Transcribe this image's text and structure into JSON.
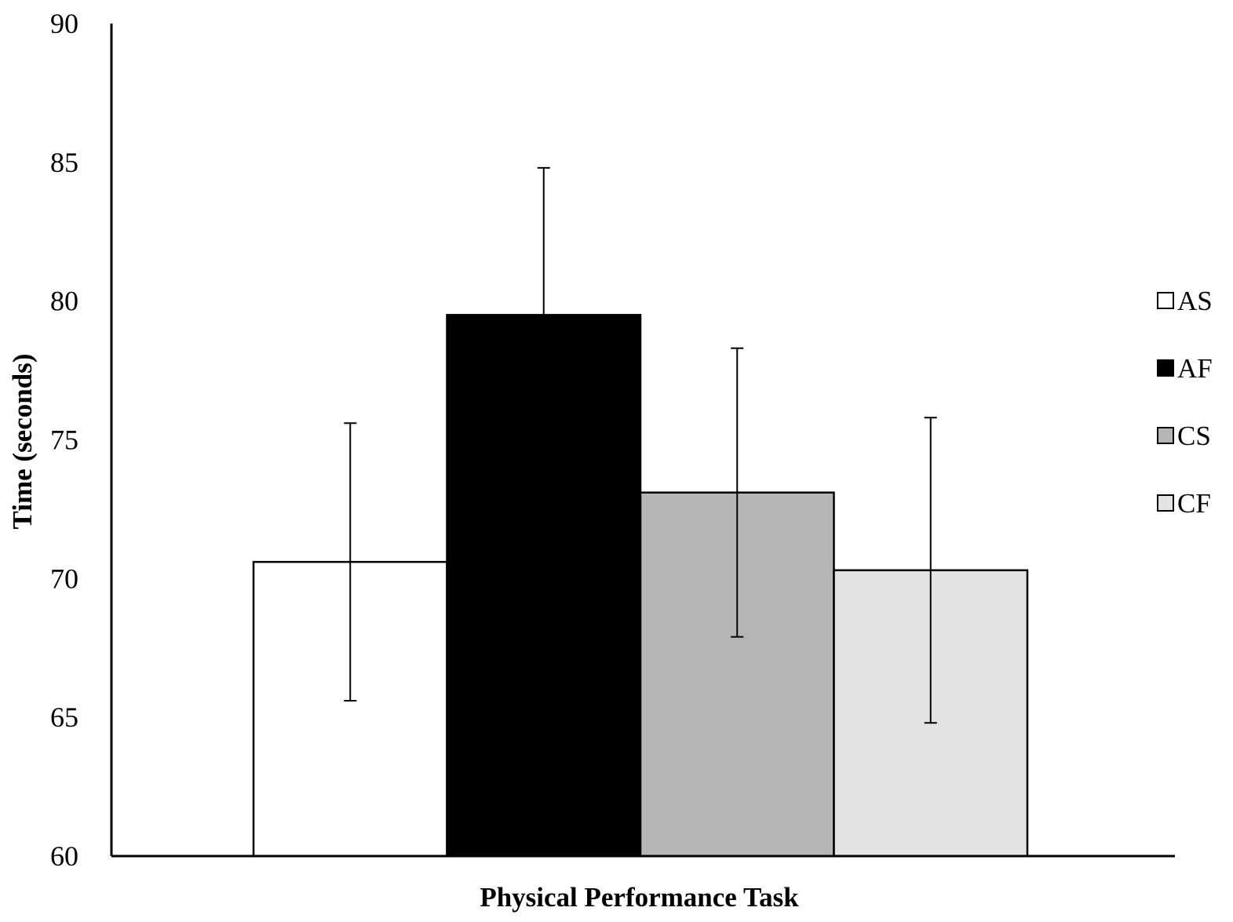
{
  "chart_data": {
    "type": "bar",
    "xlabel": "Physical Performance Task",
    "ylabel": "Time (seconds)",
    "ylim": [
      60,
      90
    ],
    "yticks": [
      60,
      65,
      70,
      75,
      80,
      85,
      90
    ],
    "grid": false,
    "legend_position": "right",
    "series": [
      {
        "name": "AS",
        "value": 70.6,
        "error": 5.0,
        "fill": "#ffffff"
      },
      {
        "name": "AF",
        "value": 79.5,
        "error": 5.3,
        "fill": "#000000"
      },
      {
        "name": "CS",
        "value": 73.1,
        "error": 5.2,
        "fill": "#b5b5b5"
      },
      {
        "name": "CF",
        "value": 70.3,
        "error": 5.5,
        "fill": "#e3e3e3"
      }
    ]
  }
}
